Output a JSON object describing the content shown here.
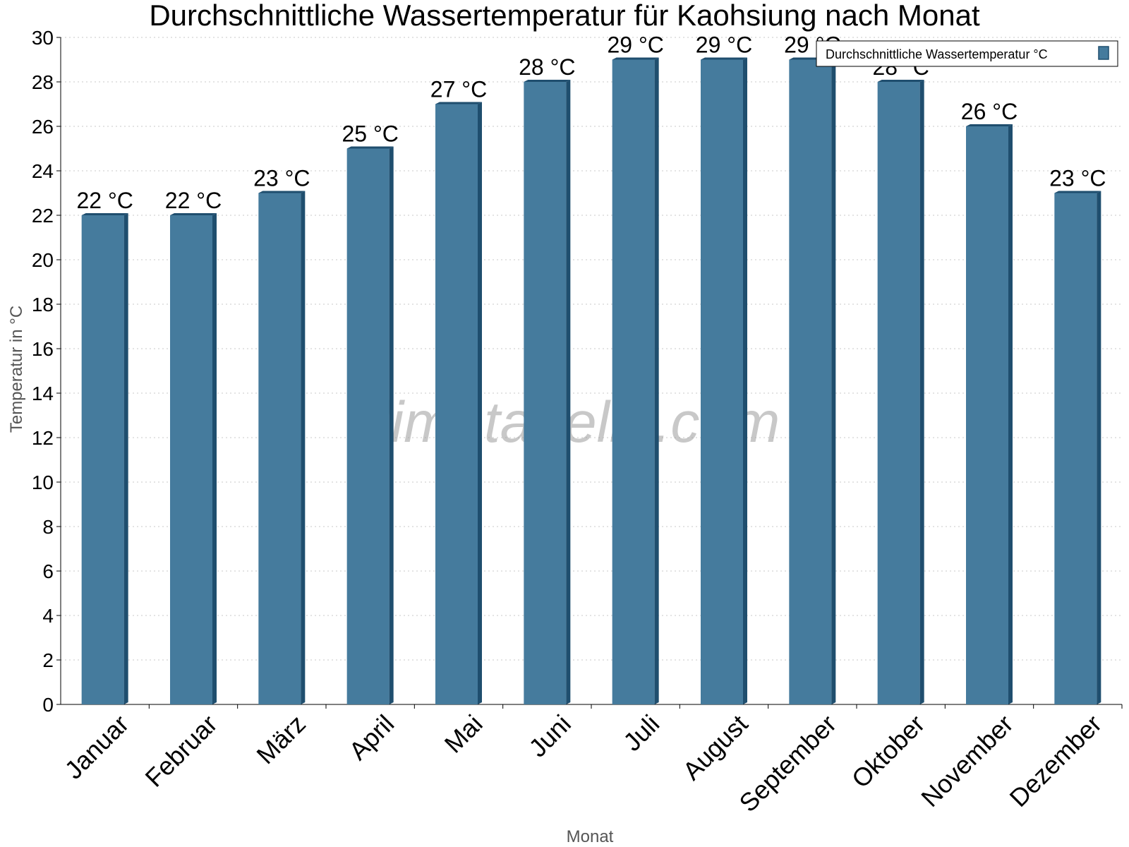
{
  "chart_data": {
    "type": "bar",
    "title": "Durchschnittliche Wassertemperatur für Kaohsiung nach Monat",
    "xlabel": "Monat",
    "ylabel": "Temperatur in °C",
    "ylim": [
      0,
      30
    ],
    "yticks": [
      0,
      2,
      4,
      6,
      8,
      10,
      12,
      14,
      16,
      18,
      20,
      22,
      24,
      26,
      28,
      30
    ],
    "grid": true,
    "legend_position": "top-right",
    "categories": [
      "Januar",
      "Februar",
      "März",
      "April",
      "Mai",
      "Juni",
      "Juli",
      "August",
      "September",
      "Oktober",
      "November",
      "Dezember"
    ],
    "series": [
      {
        "name": "Durchschnittliche Wassertemperatur °C",
        "color": "#457b9d",
        "values": [
          22,
          22,
          23,
          25,
          27,
          28,
          29,
          29,
          29,
          28,
          26,
          23
        ],
        "data_labels": [
          "22 °C",
          "22 °C",
          "23 °C",
          "25 °C",
          "27 °C",
          "28 °C",
          "29 °C",
          "29 °C",
          "29 °C",
          "28 °C",
          "26 °C",
          "23 °C"
        ]
      }
    ],
    "watermark": "klimatabelle.com"
  }
}
